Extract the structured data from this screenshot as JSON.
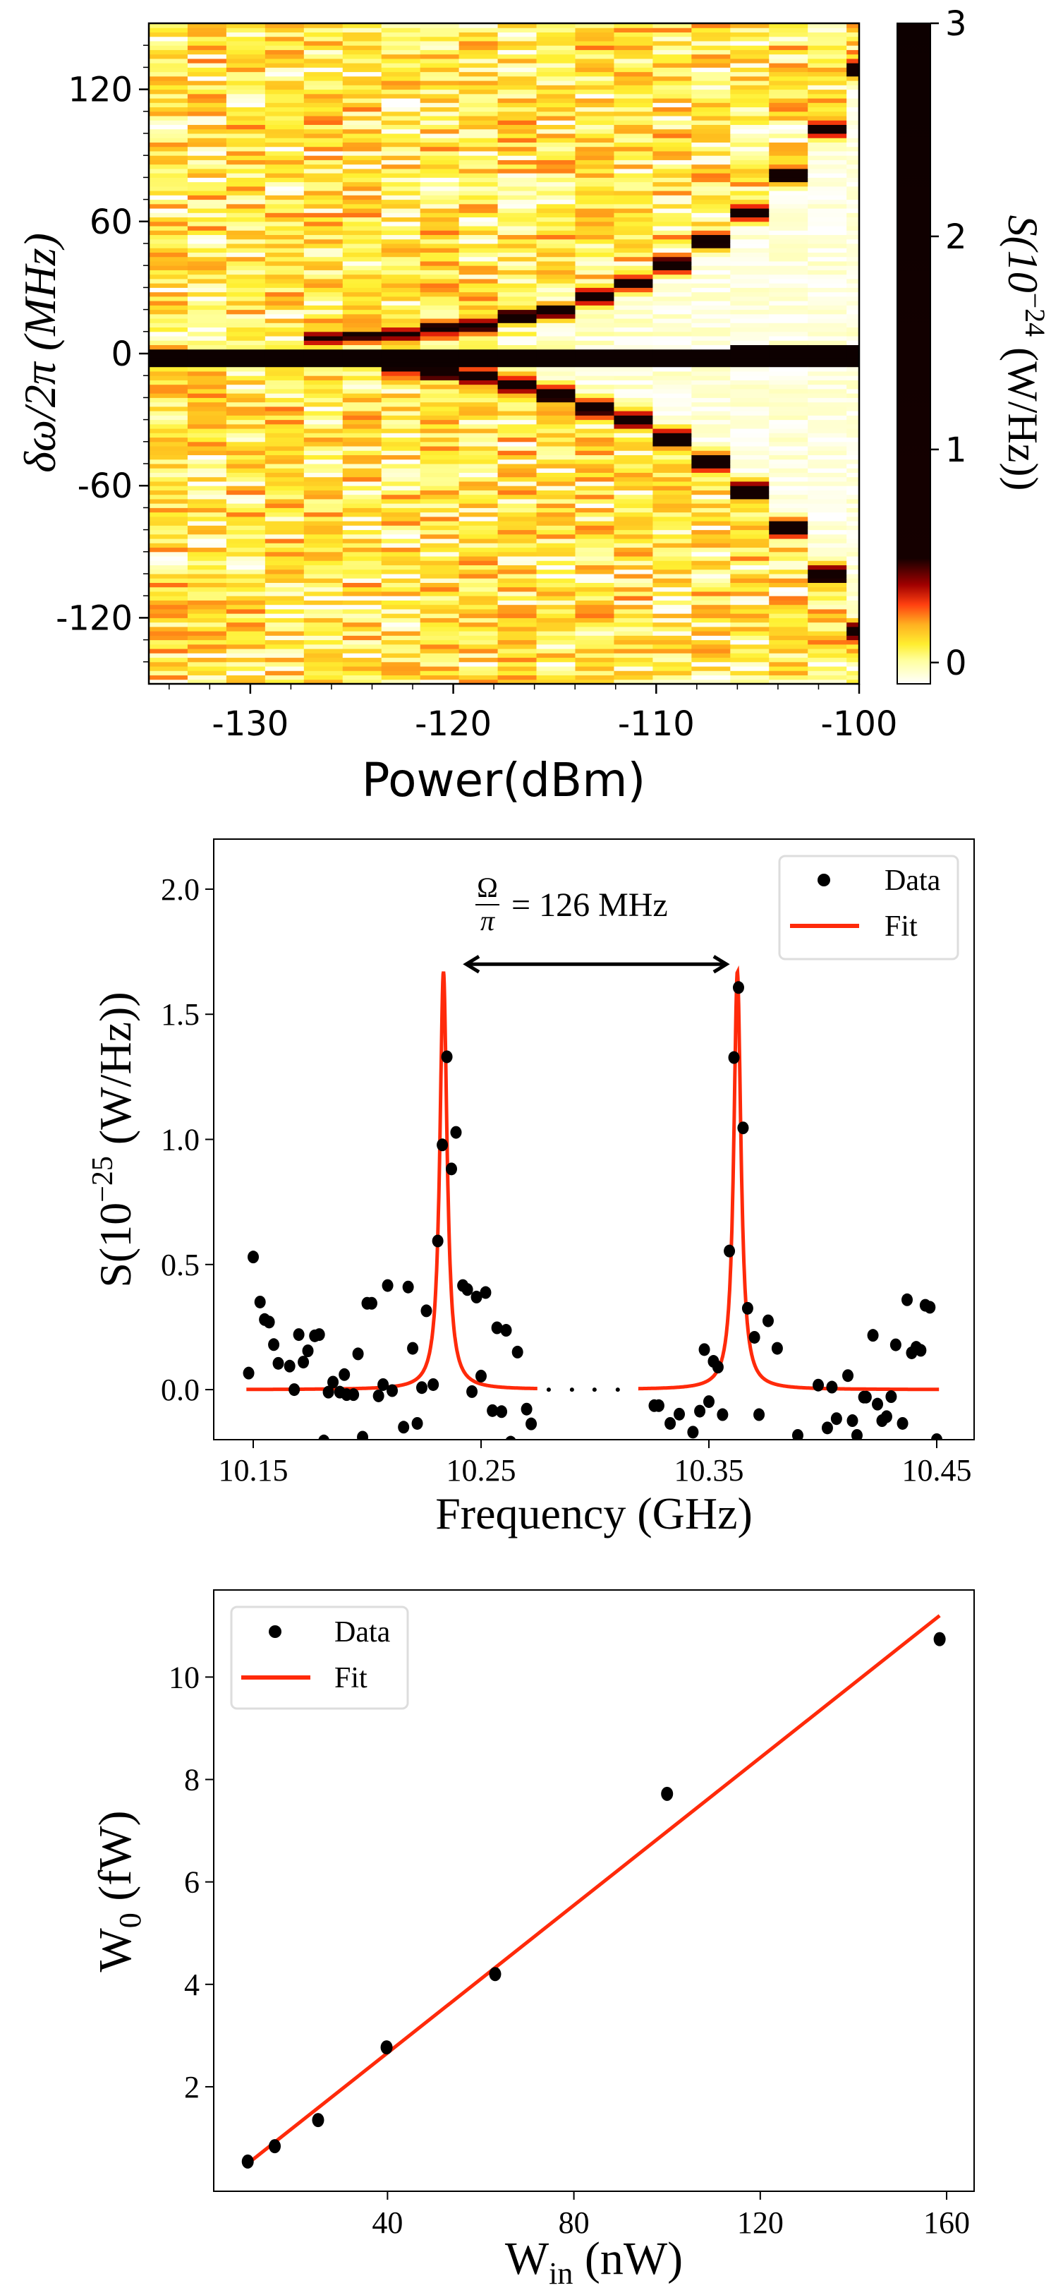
{
  "chart_data": [
    {
      "type": "heatmap",
      "xlabel": "Power(dBm)",
      "ylabel": "δω/2π (MHz)",
      "xlim": [
        -135,
        -100
      ],
      "ylim": [
        -150,
        150
      ],
      "xticks": [
        -130,
        -120,
        -110,
        -100
      ],
      "yticks": [
        120,
        60,
        0,
        -60,
        -120
      ],
      "colorbar": {
        "label_parts": [
          "S(10",
          "−24",
          " (W/Hz))"
        ],
        "range": [
          -0.1,
          3
        ],
        "ticks": [
          0,
          1,
          2,
          3
        ],
        "colormap": "hot_r (white-yellow-red-black)"
      },
      "columns": {
        "power_start": -135,
        "power_step": 1.91,
        "count": 19,
        "upper_sideband_MHz": [
          null,
          null,
          null,
          null,
          7,
          8,
          8.5,
          11,
          12.5,
          17,
          19,
          25.5,
          32,
          40,
          51,
          64,
          81,
          102,
          129
        ],
        "lower_sideband_MHz": [
          null,
          null,
          null,
          null,
          null,
          null,
          -6,
          -8,
          -10,
          -14,
          -18,
          -24.5,
          -30,
          -38,
          -49,
          -62,
          -79,
          -100,
          -126
        ],
        "central_band_MHz": [
          -6,
          3
        ]
      }
    },
    {
      "type": "scatter",
      "xlabel": "Frequency (GHz)",
      "ylabel_parts": [
        "S(10",
        "−25",
        " (W/Hz))"
      ],
      "xlim": [
        10.133,
        10.467
      ],
      "ylim": [
        -0.2,
        2.2
      ],
      "xticks": [
        "10.15",
        "10.25",
        "10.35",
        "10.45"
      ],
      "yticks": [
        "0.0",
        "0.5",
        "1.0",
        "1.5",
        "2.0"
      ],
      "legend": {
        "position": "upper-right",
        "entries": [
          "Data",
          "Fit"
        ]
      },
      "annotation": {
        "numerator": "Ω",
        "denominator": "π",
        "text": "= 126 MHz",
        "arrow_from": 10.2435,
        "arrow_to": 10.3577,
        "arrow_y": 1.7
      },
      "series": [
        {
          "name": "Data",
          "kind": "points",
          "color": "#000000",
          "x": [
            10.148,
            10.15,
            10.153,
            10.155,
            10.157,
            10.159,
            10.161,
            10.166,
            10.168,
            10.17,
            10.172,
            10.174,
            10.177,
            10.179,
            10.181,
            10.183,
            10.185,
            10.188,
            10.19,
            10.191,
            10.194,
            10.196,
            10.198,
            10.2,
            10.202,
            10.205,
            10.207,
            10.209,
            10.211,
            10.216,
            10.218,
            10.22,
            10.222,
            10.224,
            10.226,
            10.229,
            10.231,
            10.233,
            10.235,
            10.237,
            10.239,
            10.242,
            10.244,
            10.246,
            10.248,
            10.25,
            10.252,
            10.255,
            10.257,
            10.259,
            10.261,
            10.263,
            10.266,
            10.27,
            10.272,
            10.326,
            10.328,
            10.333,
            10.337,
            10.343,
            10.346,
            10.348,
            10.35,
            10.352,
            10.354,
            10.356,
            10.359,
            10.361,
            10.363,
            10.365,
            10.367,
            10.37,
            10.372,
            10.376,
            10.38,
            10.389,
            10.398,
            10.402,
            10.404,
            10.406,
            10.411,
            10.413,
            10.415,
            10.418,
            10.419,
            10.422,
            10.424,
            10.426,
            10.428,
            10.43,
            10.432,
            10.435,
            10.437,
            10.439,
            10.441,
            10.443,
            10.445,
            10.447,
            10.45
          ],
          "y": [
            0.066,
            0.53,
            0.35,
            0.28,
            0.27,
            0.18,
            0.105,
            0.094,
            0.0,
            0.22,
            0.11,
            0.155,
            0.215,
            0.22,
            -0.205,
            -0.01,
            0.03,
            -0.01,
            0.06,
            -0.02,
            -0.02,
            0.143,
            -0.19,
            0.345,
            0.345,
            -0.025,
            0.02,
            0.416,
            -0.004,
            -0.15,
            0.41,
            0.165,
            -0.135,
            0.008,
            0.315,
            0.02,
            0.594,
            0.978,
            1.33,
            0.882,
            1.028,
            0.416,
            0.4,
            -0.008,
            0.37,
            0.054,
            0.388,
            -0.084,
            0.247,
            -0.088,
            0.237,
            -0.21,
            0.15,
            -0.078,
            -0.137,
            -0.064,
            -0.064,
            -0.135,
            -0.098,
            -0.17,
            -0.086,
            0.16,
            -0.048,
            0.113,
            0.09,
            -0.1,
            0.554,
            1.327,
            1.607,
            1.046,
            0.325,
            0.209,
            -0.1,
            0.275,
            0.165,
            -0.183,
            0.018,
            -0.153,
            0.01,
            -0.116,
            0.056,
            -0.124,
            -0.183,
            -0.03,
            -0.03,
            0.217,
            -0.058,
            -0.124,
            -0.108,
            -0.028,
            0.179,
            -0.135,
            0.359,
            0.147,
            0.169,
            0.157,
            0.337,
            0.329,
            -0.2
          ]
        },
        {
          "name": "Fit",
          "kind": "lorentzian",
          "color": "#ff2a0a",
          "centers": [
            10.2335,
            10.3625
          ],
          "amplitude": 1.67,
          "hwhm": 0.0019,
          "segments": [
            [
              10.147,
              10.2747
            ],
            [
              10.319,
              10.451
            ]
          ],
          "gap_dots_x": [
            10.2797,
            10.2899,
            10.2998,
            10.31
          ]
        }
      ]
    },
    {
      "type": "scatter",
      "xlabel_parts": [
        "W",
        "in",
        " (nW)"
      ],
      "ylabel_parts": [
        "W",
        "0",
        " (fW)"
      ],
      "xlim": [
        2.7,
        165.9
      ],
      "ylim": [
        -0.04,
        11.7
      ],
      "xticks": [
        "40",
        "80",
        "120",
        "160"
      ],
      "yticks": [
        "2",
        "4",
        "6",
        "8",
        "10"
      ],
      "legend": {
        "position": "upper-left",
        "entries": [
          "Data",
          "Fit"
        ]
      },
      "series": [
        {
          "name": "Data",
          "kind": "points",
          "color": "#000000",
          "x": [
            10.0,
            15.8,
            25.1,
            39.8,
            63.1,
            100.0,
            158.5
          ],
          "y": [
            0.54,
            0.84,
            1.35,
            2.77,
            4.2,
            7.72,
            10.74
          ]
        },
        {
          "name": "Fit",
          "kind": "line",
          "color": "#ff2a0a",
          "x": [
            10.0,
            158.5
          ],
          "y": [
            0.5,
            11.2
          ]
        }
      ]
    }
  ]
}
